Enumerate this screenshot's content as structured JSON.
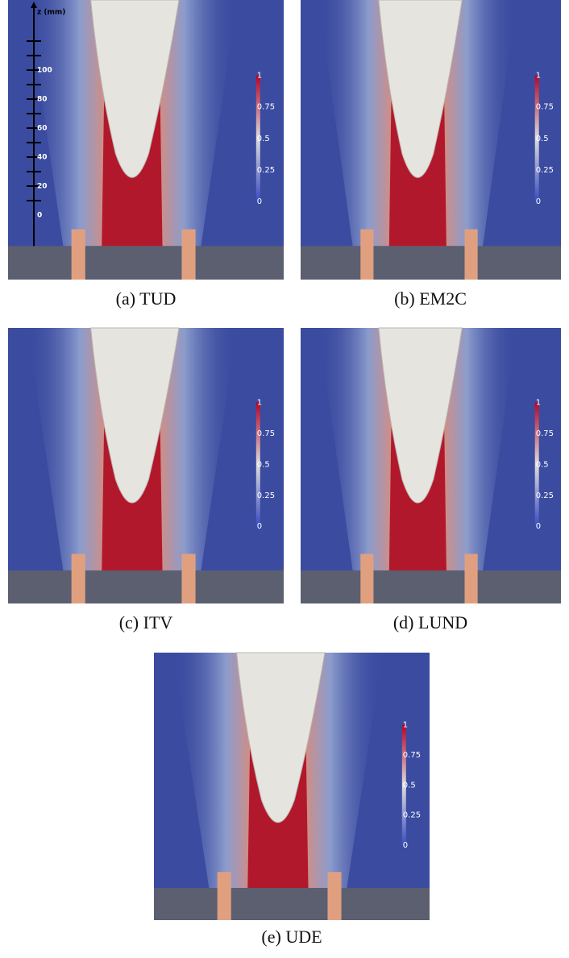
{
  "panels": [
    {
      "caption": "(a)  TUD",
      "colorbar": [
        "1",
        "0.75",
        "0.5",
        "0.25",
        "0"
      ],
      "axis": {
        "title": "z (mm)",
        "ticks": [
          "100",
          "80",
          "60",
          "40",
          "20",
          "0"
        ]
      }
    },
    {
      "caption": "(b)  EM2C",
      "colorbar": [
        "1",
        "0.75",
        "0.5",
        "0.25",
        "0"
      ]
    },
    {
      "caption": "(c)  ITV",
      "colorbar": [
        "1",
        "0.75",
        "0.5",
        "0.25",
        "0"
      ]
    },
    {
      "caption": "(d)  LUND",
      "colorbar": [
        "1",
        "0.75",
        "0.5",
        "0.25",
        "0"
      ]
    },
    {
      "caption": "(e)  UDE",
      "colorbar": [
        "1",
        "0.75",
        "0.5",
        "0.25",
        "0"
      ]
    }
  ]
}
